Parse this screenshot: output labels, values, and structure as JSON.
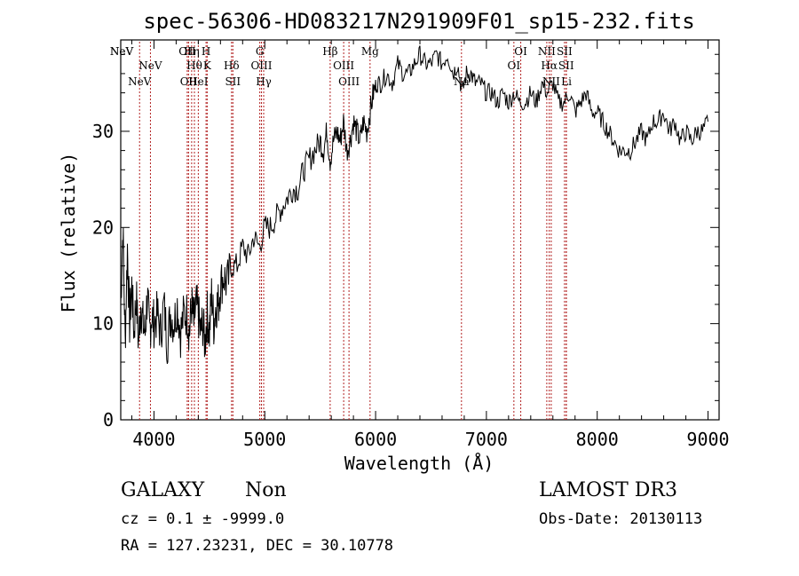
{
  "chart_data": {
    "type": "line",
    "title": "spec-56306-HD083217N291909F01_sp15-232.fits",
    "xlabel": "Wavelength (Å)",
    "ylabel": "Flux (relative)",
    "xlim": [
      3700,
      9100
    ],
    "ylim": [
      0,
      39.5
    ],
    "x_ticks": [
      4000,
      5000,
      6000,
      7000,
      8000,
      9000
    ],
    "y_ticks": [
      0,
      10,
      20,
      30
    ],
    "grid": false,
    "line_color": "#000000",
    "marker_color": "#b22222",
    "series": [
      {
        "x": [
          3700,
          3720,
          3740,
          3760,
          3780,
          3800,
          3820,
          3840,
          3860,
          3880,
          3900,
          3920,
          3940,
          3960,
          3980,
          4000,
          4030,
          4060,
          4090,
          4120,
          4150,
          4180,
          4210,
          4240,
          4270,
          4300,
          4320,
          4340,
          4360,
          4380,
          4400,
          4420,
          4440,
          4460,
          4480,
          4500,
          4520,
          4540,
          4560,
          4580,
          4600,
          4630,
          4660,
          4700,
          4750,
          4800,
          4850,
          4900,
          4950,
          5000,
          5050,
          5100,
          5150,
          5200,
          5250,
          5300,
          5350,
          5400,
          5450,
          5500,
          5530,
          5560,
          5590,
          5620,
          5650,
          5680,
          5710,
          5740,
          5770,
          5800,
          5830,
          5860,
          5890,
          5920,
          5950,
          5980,
          6010,
          6050,
          6100,
          6150,
          6200,
          6250,
          6300,
          6350,
          6400,
          6450,
          6500,
          6550,
          6600,
          6650,
          6700,
          6740,
          6780,
          6820,
          6860,
          6900,
          6950,
          7000,
          7050,
          7100,
          7150,
          7200,
          7250,
          7300,
          7350,
          7400,
          7450,
          7500,
          7550,
          7600,
          7650,
          7700,
          7750,
          7800,
          7850,
          7900,
          7950,
          8000,
          8050,
          8100,
          8150,
          8200,
          8250,
          8300,
          8350,
          8400,
          8450,
          8500,
          8550,
          8600,
          8650,
          8700,
          8750,
          8800,
          8850,
          8900,
          8950,
          9000
        ],
        "y": [
          12,
          20,
          8,
          18,
          10,
          14,
          9,
          13,
          8,
          12,
          10,
          9,
          13,
          9,
          11,
          10,
          11,
          9,
          12,
          8,
          11,
          10,
          12,
          9,
          11,
          11,
          9,
          12,
          10,
          12,
          11,
          9,
          10,
          8,
          11,
          9,
          13,
          10,
          12,
          12,
          14,
          15,
          14,
          16,
          16,
          18,
          17,
          19,
          18,
          20,
          20,
          21,
          22,
          23,
          24,
          24,
          26,
          27,
          28,
          29,
          28,
          30,
          27,
          29,
          30,
          29,
          31,
          28,
          29,
          31,
          30,
          29,
          31,
          30,
          32,
          34,
          35,
          35,
          36,
          35,
          37,
          36,
          36,
          37,
          38,
          37,
          37,
          38,
          37,
          38,
          36,
          37,
          34,
          36,
          36,
          35,
          35,
          34,
          34,
          33,
          34,
          33,
          34,
          33,
          33,
          34,
          33,
          35,
          34,
          35,
          33,
          33,
          34,
          32,
          33,
          34,
          32,
          32,
          31,
          30,
          29,
          28,
          28,
          28,
          29,
          30,
          29,
          31,
          31,
          32,
          30,
          31,
          29,
          30,
          29,
          30,
          30,
          31
        ]
      }
    ],
    "spectral_lines": [
      {
        "label": "NeV",
        "wavelength": 3346,
        "row": 0
      },
      {
        "label": "NeV",
        "wavelength": 3426,
        "row": 0
      },
      {
        "label": "NeV",
        "wavelength": 3870,
        "row": 2
      },
      {
        "label": "NeV",
        "wavelength": 3968,
        "row": 1
      },
      {
        "label": "OII",
        "wavelength": 4300,
        "row": 0
      },
      {
        "label": "OII",
        "wavelength": 4312,
        "row": 2
      },
      {
        "label": "Hη",
        "wavelength": 4340,
        "row": 0
      },
      {
        "label": "Hθ",
        "wavelength": 4365,
        "row": 1
      },
      {
        "label": "HeI",
        "wavelength": 4400,
        "row": 2
      },
      {
        "label": "H",
        "wavelength": 4470,
        "row": 0
      },
      {
        "label": "K",
        "wavelength": 4480,
        "row": 1
      },
      {
        "label": "Hδ",
        "wavelength": 4700,
        "row": 1
      },
      {
        "label": "SII",
        "wavelength": 4712,
        "row": 2
      },
      {
        "label": "G",
        "wavelength": 4955,
        "row": 0
      },
      {
        "label": "OIII",
        "wavelength": 4970,
        "row": 1
      },
      {
        "label": "Hγ",
        "wavelength": 4990,
        "row": 2
      },
      {
        "label": "Hβ",
        "wavelength": 5590,
        "row": 0
      },
      {
        "label": "OIII",
        "wavelength": 5712,
        "row": 1
      },
      {
        "label": "OIII",
        "wavelength": 5760,
        "row": 2
      },
      {
        "label": "Mg",
        "wavelength": 5950,
        "row": 0
      },
      {
        "label": "Na",
        "wavelength": 6775,
        "row": 2
      },
      {
        "label": "OI",
        "wavelength": 7248,
        "row": 1
      },
      {
        "label": "OI",
        "wavelength": 7310,
        "row": 0
      },
      {
        "label": "NII",
        "wavelength": 7545,
        "row": 0
      },
      {
        "label": "Hα",
        "wavelength": 7567,
        "row": 1
      },
      {
        "label": "NII",
        "wavelength": 7585,
        "row": 2
      },
      {
        "label": "SII",
        "wavelength": 7705,
        "row": 0
      },
      {
        "label": "SII",
        "wavelength": 7720,
        "row": 1
      },
      {
        "label": "Li",
        "wavelength": 7722,
        "row": 2
      }
    ]
  },
  "info": {
    "object_class": "GALAXY",
    "subclass": "Non",
    "cz": "cz = 0.1 ± -9999.0",
    "coords": "RA = 127.23231, DEC =  30.10778",
    "release": "LAMOST DR3",
    "obs_date": "Obs-Date: 20130113"
  }
}
